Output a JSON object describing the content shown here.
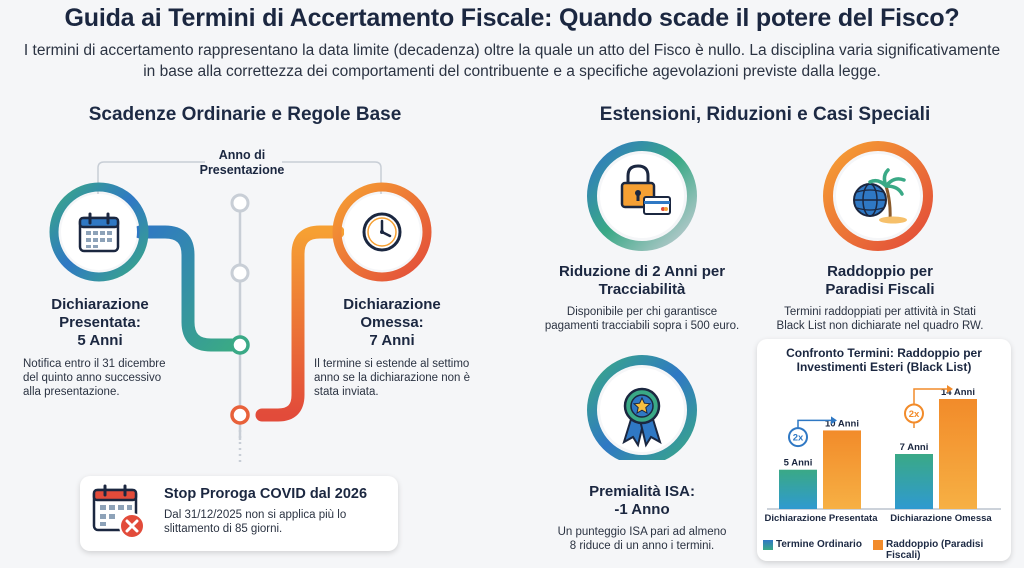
{
  "header": {
    "title": "Guida ai Termini di Accertamento Fiscale: Quando scade il potere del Fisco?",
    "subtitle": "I termini di accertamento rappresentano la data limite (decadenza) oltre la quale un atto del Fisco è nullo. La disciplina varia significativamente in base alla correttezza dei comportamenti del contribuente e a specifiche agevolazioni previste dalla legge."
  },
  "left": {
    "heading": "Scadenze Ordinarie e Regole Base",
    "timeline_label": "Anno di Presentazione",
    "presentata": {
      "title_line1": "Dichiarazione",
      "title_line2": "Presentata:",
      "years": "5 Anni",
      "text": "Notifica entro il 31 dicembre del quinto anno successivo alla presentazione.",
      "icon": "calendar-icon"
    },
    "omessa": {
      "title_line1": "Dichiarazione",
      "title_line2": "Omessa:",
      "years": "7 Anni",
      "text": "Il termine si estende al settimo anno se la dichiarazione non è stata inviata.",
      "icon": "clock-icon"
    },
    "covid": {
      "title": "Stop Proroga COVID dal 2026",
      "text": "Dal 31/12/2025 non si applica più lo slittamento di 85 giorni.",
      "icon": "calendar-cancel-icon"
    }
  },
  "right": {
    "heading": "Estensioni, Riduzioni e Casi Speciali",
    "tracciabilita": {
      "title_line1": "Riduzione di 2 Anni per",
      "title_line2": "Tracciabilità",
      "text": "Disponibile per chi garantisce pagamenti tracciabili sopra i 500 euro.",
      "icon": "lock-card-icon"
    },
    "paradisi": {
      "title_line1": "Raddoppio per",
      "title_line2": "Paradisi Fiscali",
      "text": "Termini raddoppiati per attività in Stati Black List non dichiarate nel quadro RW.",
      "icon": "globe-palm-icon"
    },
    "isa": {
      "title_line1": "Premialità ISA:",
      "title_line2": "-1 Anno",
      "text": "Un punteggio ISA pari ad almeno 8 riduce di un anno i termini.",
      "icon": "award-ribbon-icon"
    }
  },
  "chart_data": {
    "type": "bar",
    "title": "Confronto Termini: Raddoppio per Investimenti Esteri (Black List)",
    "categories": [
      "Dichiarazione Presentata",
      "Dichiarazione Omessa"
    ],
    "series": [
      {
        "name": "Termine Ordinario",
        "values": [
          5,
          7
        ],
        "labels": [
          "5 Anni",
          "7 Anni"
        ],
        "color": "#3aa986"
      },
      {
        "name": "Raddoppio (Paradisi Fiscali)",
        "values": [
          10,
          14
        ],
        "labels": [
          "10 Anni",
          "14 Anni"
        ],
        "color": "#f28b2a"
      }
    ],
    "multiplier_label": "2x",
    "ylim": [
      0,
      14
    ],
    "grid": false,
    "legend_position": "bottom"
  },
  "colors": {
    "blue": "#2f78c4",
    "green": "#3aa986",
    "orange": "#f28b2a",
    "red": "#e24b3a",
    "navy": "#1b2740"
  }
}
